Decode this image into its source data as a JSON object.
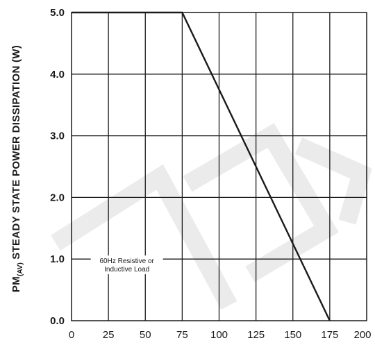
{
  "chart_data": {
    "type": "line",
    "title": "",
    "xlabel": "",
    "ylabel_main": "PM",
    "ylabel_sub": "(AV)",
    "ylabel_rest": " STEADY STATE POWER DISSIPATION (W)",
    "xlim": [
      0,
      200
    ],
    "ylim": [
      0,
      5
    ],
    "x_ticks": [
      "0",
      "25",
      "50",
      "75",
      "100",
      "125",
      "150",
      "175",
      "200"
    ],
    "x_tick_values": [
      0,
      25,
      50,
      75,
      100,
      125,
      150,
      175,
      200
    ],
    "y_ticks": [
      "0.0",
      "1.0",
      "2.0",
      "3.0",
      "4.0",
      "5.0"
    ],
    "y_tick_values": [
      0,
      1,
      2,
      3,
      4,
      5
    ],
    "grid": true,
    "series": [
      {
        "x": [
          0,
          75,
          175
        ],
        "y": [
          5.0,
          5.0,
          0.0
        ]
      }
    ],
    "annotation_line1": "60Hz Resistive or",
    "annotation_line2": "Inductive Load",
    "annotation_x": 37.5,
    "annotation_y": 0.9,
    "colors": {
      "line": "#1a1a1a",
      "grid": "#1a1a1a",
      "watermark": "#cfcfcf"
    }
  }
}
